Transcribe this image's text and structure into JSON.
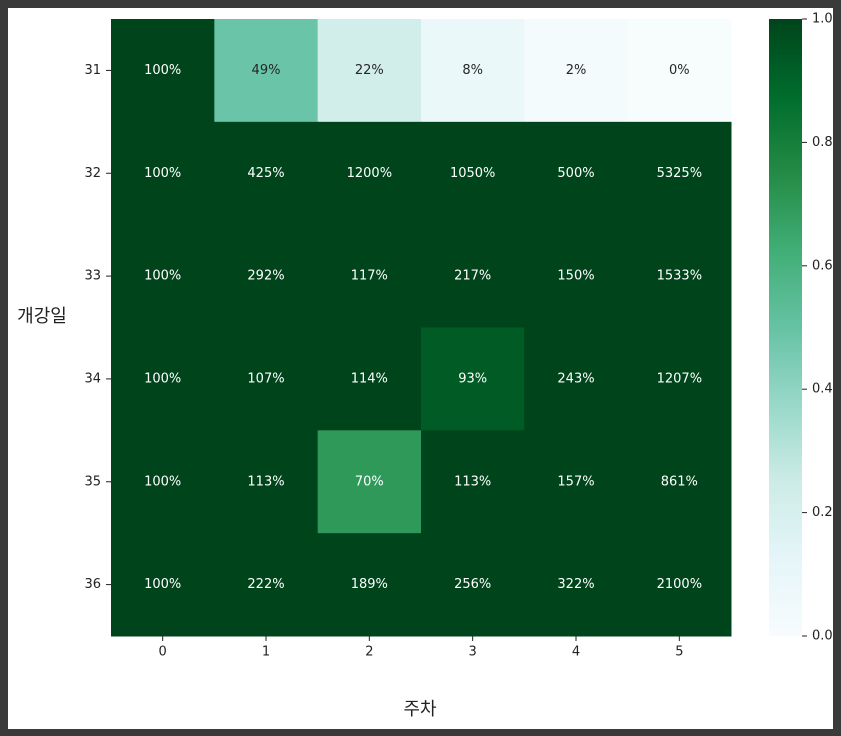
{
  "chart_data": {
    "type": "heatmap",
    "x_label": "주차",
    "y_label": "개강일",
    "columns": [
      "0",
      "1",
      "2",
      "3",
      "4",
      "5"
    ],
    "rows": [
      "31",
      "32",
      "33",
      "34",
      "35",
      "36"
    ],
    "values": [
      [
        1.0,
        0.49,
        0.22,
        0.08,
        0.02,
        0.0
      ],
      [
        1.0,
        4.25,
        12.0,
        10.5,
        5.0,
        53.25
      ],
      [
        1.0,
        2.92,
        1.17,
        2.17,
        1.5,
        15.33
      ],
      [
        1.0,
        1.07,
        1.14,
        0.93,
        2.43,
        12.07
      ],
      [
        1.0,
        1.13,
        0.7,
        1.13,
        1.57,
        8.61
      ],
      [
        1.0,
        2.22,
        1.89,
        2.56,
        3.22,
        21.0
      ]
    ],
    "value_labels": [
      [
        "100%",
        "49%",
        "22%",
        "8%",
        "2%",
        "0%"
      ],
      [
        "100%",
        "425%",
        "1200%",
        "1050%",
        "500%",
        "5325%"
      ],
      [
        "100%",
        "292%",
        "117%",
        "217%",
        "150%",
        "1533%"
      ],
      [
        "100%",
        "107%",
        "114%",
        "93%",
        "243%",
        "1207%"
      ],
      [
        "100%",
        "113%",
        "70%",
        "113%",
        "157%",
        "861%"
      ],
      [
        "100%",
        "222%",
        "189%",
        "256%",
        "322%",
        "2100%"
      ]
    ],
    "colormap": "BuGn",
    "clim": [
      0,
      1
    ],
    "cticks": [
      {
        "value": 0,
        "label": "0.0"
      },
      0.2,
      0.4,
      0.6,
      0.8,
      {
        "value": 1,
        "label": "1.0"
      }
    ]
  }
}
